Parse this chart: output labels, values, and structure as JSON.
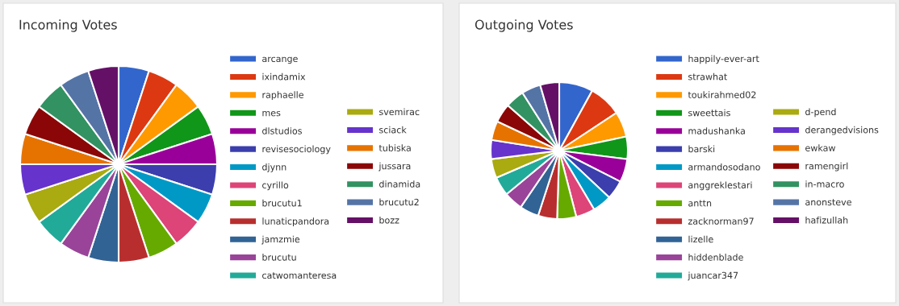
{
  "chart_data": [
    {
      "type": "pie",
      "title": "Incoming Votes",
      "legend": "right",
      "categories": [
        "arcange",
        "ixindamix",
        "raphaelle",
        "mes",
        "dlstudios",
        "revisesociology",
        "djynn",
        "cyrillo",
        "brucutu1",
        "lunaticpandora",
        "jamzmie",
        "brucutu",
        "catwomanteresa",
        "svemirac",
        "sciack",
        "tubiska",
        "jussara",
        "dinamida",
        "brucutu2",
        "bozz"
      ],
      "values": [
        5,
        5,
        5,
        5,
        5,
        5,
        5,
        5,
        5,
        5,
        5,
        5,
        5,
        5,
        5,
        5,
        5,
        5,
        5,
        5
      ],
      "colors": [
        "#3366cc",
        "#dc3912",
        "#ff9900",
        "#109618",
        "#990099",
        "#3b3eac",
        "#0099c6",
        "#dd4477",
        "#66aa00",
        "#b82e2e",
        "#316395",
        "#994499",
        "#22aa99",
        "#aaaa11",
        "#6633cc",
        "#e67300",
        "#8b0707",
        "#329262",
        "#5574a6",
        "#651067"
      ]
    },
    {
      "type": "pie",
      "title": "Outgoing Votes",
      "legend": "right",
      "categories": [
        "happily-ever-art",
        "strawhat",
        "toukirahmed02",
        "sweettais",
        "madushanka",
        "barski",
        "armandosodano",
        "anggreklestari",
        "anttn",
        "zacknorman97",
        "lizelle",
        "hiddenblade",
        "juancar347",
        "d-pend",
        "derangedvisions",
        "ewkaw",
        "ramengirl",
        "in-macro",
        "anonsteve",
        "hafizullah"
      ],
      "values": [
        8,
        7.7,
        6,
        5.3,
        5.5,
        4.5,
        4.5,
        4.5,
        4.5,
        4.5,
        4.5,
        4.5,
        4.5,
        4.5,
        4.5,
        4.5,
        4.5,
        4.5,
        4.5,
        4.5
      ],
      "colors": [
        "#3366cc",
        "#dc3912",
        "#ff9900",
        "#109618",
        "#990099",
        "#3b3eac",
        "#0099c6",
        "#dd4477",
        "#66aa00",
        "#b82e2e",
        "#316395",
        "#994499",
        "#22aa99",
        "#aaaa11",
        "#6633cc",
        "#e67300",
        "#8b0707",
        "#329262",
        "#5574a6",
        "#651067"
      ]
    }
  ]
}
